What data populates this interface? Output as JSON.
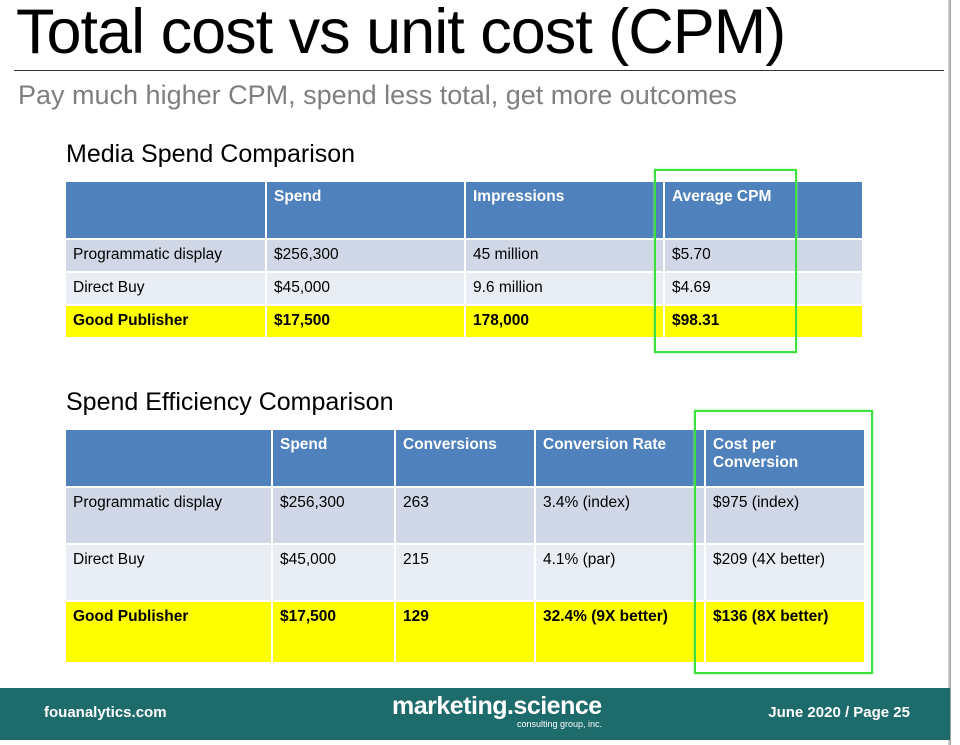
{
  "header": {
    "title": "Total cost vs unit cost (CPM)",
    "subtitle": "Pay much higher CPM, spend less total, get more outcomes"
  },
  "tables": [
    {
      "title": "Media Spend Comparison",
      "columns": [
        "Spend",
        "Impressions",
        "Average CPM"
      ],
      "rows": [
        [
          "Programmatic display",
          "$256,300",
          "45 million",
          "$5.70"
        ],
        [
          "Direct Buy",
          "$45,000",
          "9.6 million",
          "$4.69"
        ],
        [
          "Good Publisher",
          "$17,500",
          "178,000",
          "$98.31"
        ]
      ]
    },
    {
      "title": "Spend Efficiency Comparison",
      "columns": [
        "Spend",
        "Conversions",
        "Conversion Rate",
        "Cost per Conversion"
      ],
      "rows": [
        [
          "Programmatic display",
          "$256,300",
          "263",
          "3.4%  (index)",
          "$975  (index)"
        ],
        [
          "Direct Buy",
          "$45,000",
          "215",
          "4.1%  (par)",
          "$209  (4X better)"
        ],
        [
          "Good Publisher",
          "$17,500",
          "129",
          "32.4%  (9X better)",
          "$136  (8X better)"
        ]
      ]
    }
  ],
  "footer": {
    "left": "fouanalytics.com",
    "logo": "marketing.science",
    "logo_sub": "consulting group, inc.",
    "right": "June 2020 / Page 25"
  }
}
